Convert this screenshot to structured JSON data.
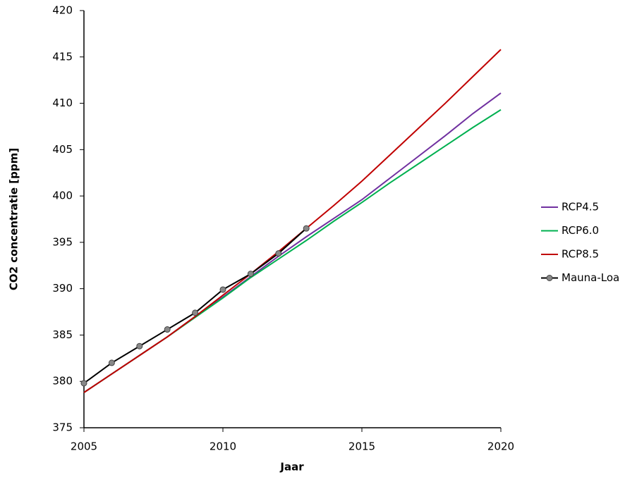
{
  "chart_data": {
    "type": "line",
    "xlabel": "Jaar",
    "ylabel": "CO2 concentratie  [ppm]",
    "xlim": [
      2005,
      2020
    ],
    "xticks": [
      2005,
      2010,
      2015,
      2020
    ],
    "ylim": [
      375,
      420
    ],
    "yticks": [
      375,
      380,
      385,
      390,
      395,
      400,
      405,
      410,
      415,
      420
    ],
    "grid": false,
    "legend": "right",
    "series": [
      {
        "name": "RCP4.5",
        "color": "#7030a0",
        "marker": false,
        "x": [
          2005,
          2006,
          2007,
          2008,
          2009,
          2010,
          2011,
          2012,
          2013,
          2014,
          2015,
          2016,
          2017,
          2018,
          2019,
          2020
        ],
        "values": [
          378.8,
          380.8,
          382.8,
          384.8,
          387.0,
          389.1,
          391.3,
          393.5,
          395.6,
          397.6,
          399.6,
          401.9,
          404.2,
          406.5,
          408.9,
          411.1
        ]
      },
      {
        "name": "RCP6.0",
        "color": "#00b050",
        "marker": false,
        "x": [
          2005,
          2006,
          2007,
          2008,
          2009,
          2010,
          2011,
          2012,
          2013,
          2014,
          2015,
          2016,
          2017,
          2018,
          2019,
          2020
        ],
        "values": [
          378.8,
          380.8,
          382.8,
          384.8,
          386.9,
          389.0,
          391.2,
          393.2,
          395.2,
          397.3,
          399.3,
          401.4,
          403.4,
          405.4,
          407.4,
          409.3
        ]
      },
      {
        "name": "RCP8.5",
        "color": "#c00000",
        "marker": false,
        "x": [
          2005,
          2006,
          2007,
          2008,
          2009,
          2010,
          2011,
          2012,
          2013,
          2014,
          2015,
          2016,
          2017,
          2018,
          2019,
          2020
        ],
        "values": [
          378.8,
          380.8,
          382.8,
          384.8,
          387.0,
          389.3,
          391.6,
          394.0,
          396.5,
          399.0,
          401.6,
          404.4,
          407.2,
          410.0,
          412.9,
          415.8
        ]
      },
      {
        "name": "Mauna-Loa",
        "color": "#000000",
        "marker": true,
        "x": [
          2005,
          2006,
          2007,
          2008,
          2009,
          2010,
          2011,
          2012,
          2013
        ],
        "values": [
          379.8,
          382.0,
          383.8,
          385.6,
          387.4,
          389.9,
          391.6,
          393.8,
          396.5
        ]
      }
    ]
  }
}
